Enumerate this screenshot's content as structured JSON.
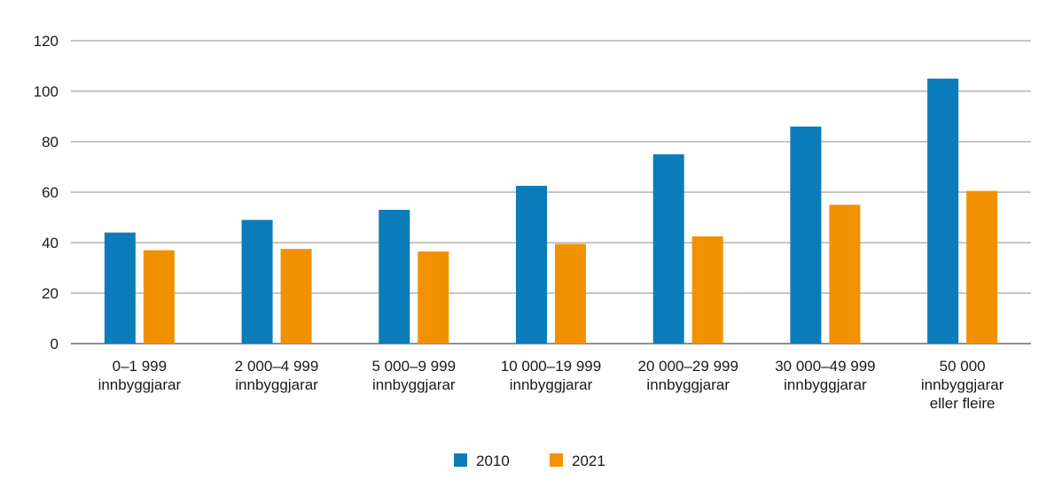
{
  "chart_data": {
    "type": "bar",
    "categories": [
      [
        "0–1 999",
        "innbyggjarar"
      ],
      [
        "2 000–4 999",
        "innbyggjarar"
      ],
      [
        "5 000–9 999",
        "innbyggjarar"
      ],
      [
        "10 000–19 999",
        "innbyggjarar"
      ],
      [
        "20 000–29 999",
        "innbyggjarar"
      ],
      [
        "30 000–49 999",
        "innbyggjarar"
      ],
      [
        "50 000",
        "innbyggjarar",
        "eller fleire"
      ]
    ],
    "series": [
      {
        "name": "2010",
        "color": "#0a7cba",
        "values": [
          44,
          49,
          53,
          62.5,
          75,
          86,
          105
        ]
      },
      {
        "name": "2021",
        "color": "#f29100",
        "values": [
          37,
          37.5,
          36.5,
          39.5,
          42.5,
          55,
          60.5
        ]
      }
    ],
    "yticks": [
      0,
      20,
      40,
      60,
      80,
      100,
      120
    ],
    "ylim": [
      0,
      120
    ],
    "grid": true,
    "legend_position": "bottom-center",
    "title": "",
    "xlabel": "",
    "ylabel": ""
  }
}
